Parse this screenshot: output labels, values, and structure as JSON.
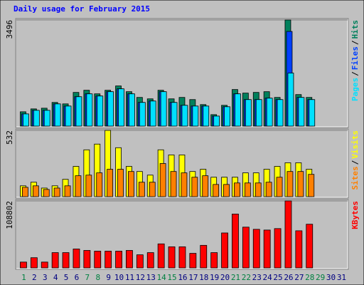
{
  "title": "Daily usage for February 2015",
  "legend_separator": "/",
  "chart_data": [
    {
      "type": "bar",
      "ylim": [
        0,
        3496
      ],
      "yticks": [
        3496
      ],
      "series": [
        {
          "name": "Hits",
          "color": "#00805c",
          "values": [
            472,
            567,
            590,
            780,
            732,
            1110,
            1181,
            1063,
            1181,
            1323,
            1134,
            945,
            898,
            1181,
            898,
            945,
            874,
            709,
            378,
            685,
            1205,
            1087,
            1110,
            1134,
            945,
            3496,
            1039,
            945,
            null,
            null,
            null
          ]
        },
        {
          "name": "Files",
          "color": "#0040ff",
          "values": [
            402,
            520,
            520,
            732,
            661,
            968,
            1063,
            992,
            1134,
            1228,
            1063,
            780,
            827,
            1134,
            780,
            685,
            661,
            661,
            331,
            638,
            1063,
            874,
            874,
            921,
            874,
            3118,
            945,
            874,
            null,
            null,
            null
          ]
        },
        {
          "name": "Pages",
          "color": "#00e0ff",
          "values": [
            402,
            520,
            520,
            732,
            661,
            968,
            1063,
            992,
            1134,
            1228,
            1063,
            780,
            827,
            1134,
            780,
            685,
            661,
            661,
            331,
            638,
            1063,
            874,
            874,
            921,
            874,
            1748,
            945,
            874,
            null,
            null,
            null
          ]
        }
      ]
    },
    {
      "type": "bar",
      "ylim": [
        0,
        532
      ],
      "yticks": [
        532
      ],
      "series": [
        {
          "name": "Visits",
          "color": "#ffff00",
          "values": [
            87,
            116,
            69,
            87,
            139,
            243,
            376,
            422,
            532,
            393,
            243,
            202,
            173,
            376,
            335,
            335,
            202,
            220,
            156,
            156,
            156,
            191,
            191,
            220,
            243,
            272,
            272,
            220,
            null,
            null,
            null
          ]
        },
        {
          "name": "Sites",
          "color": "#ff8000",
          "values": [
            75,
            87,
            58,
            69,
            87,
            168,
            173,
            191,
            220,
            220,
            202,
            116,
            116,
            266,
            202,
            191,
            156,
            168,
            98,
            98,
            110,
            110,
            110,
            116,
            156,
            202,
            202,
            179,
            null,
            null,
            null
          ]
        }
      ]
    },
    {
      "type": "bar",
      "ylim": [
        0,
        108802
      ],
      "yticks": [
        108802
      ],
      "categories": [
        "1",
        "2",
        "3",
        "4",
        "5",
        "6",
        "7",
        "8",
        "9",
        "10",
        "11",
        "12",
        "13",
        "14",
        "15",
        "16",
        "17",
        "18",
        "19",
        "20",
        "21",
        "22",
        "23",
        "24",
        "25",
        "26",
        "27",
        "28",
        "29",
        "30",
        "31"
      ],
      "category_colors": [
        "#008040",
        "#000080",
        "#000080",
        "#000080",
        "#000080",
        "#000080",
        "#008040",
        "#008040",
        "#000080",
        "#000080",
        "#000080",
        "#000080",
        "#000080",
        "#008040",
        "#008040",
        "#000080",
        "#000080",
        "#000080",
        "#000080",
        "#000080",
        "#008040",
        "#008040",
        "#000080",
        "#000080",
        "#000080",
        "#000080",
        "#000080",
        "#008040",
        "#008040",
        "#000080",
        "#000080"
      ],
      "series": [
        {
          "name": "KBytes",
          "color": "#ff0000",
          "values": [
            9461,
            16557,
            9461,
            24835,
            24835,
            30748,
            28383,
            27200,
            27200,
            27200,
            28383,
            21287,
            24835,
            39026,
            34296,
            34296,
            23652,
            36661,
            24835,
            56765,
            87512,
            66226,
            62678,
            61495,
            63860,
            108802,
            60313,
            70957,
            null,
            null,
            null
          ]
        }
      ]
    }
  ]
}
